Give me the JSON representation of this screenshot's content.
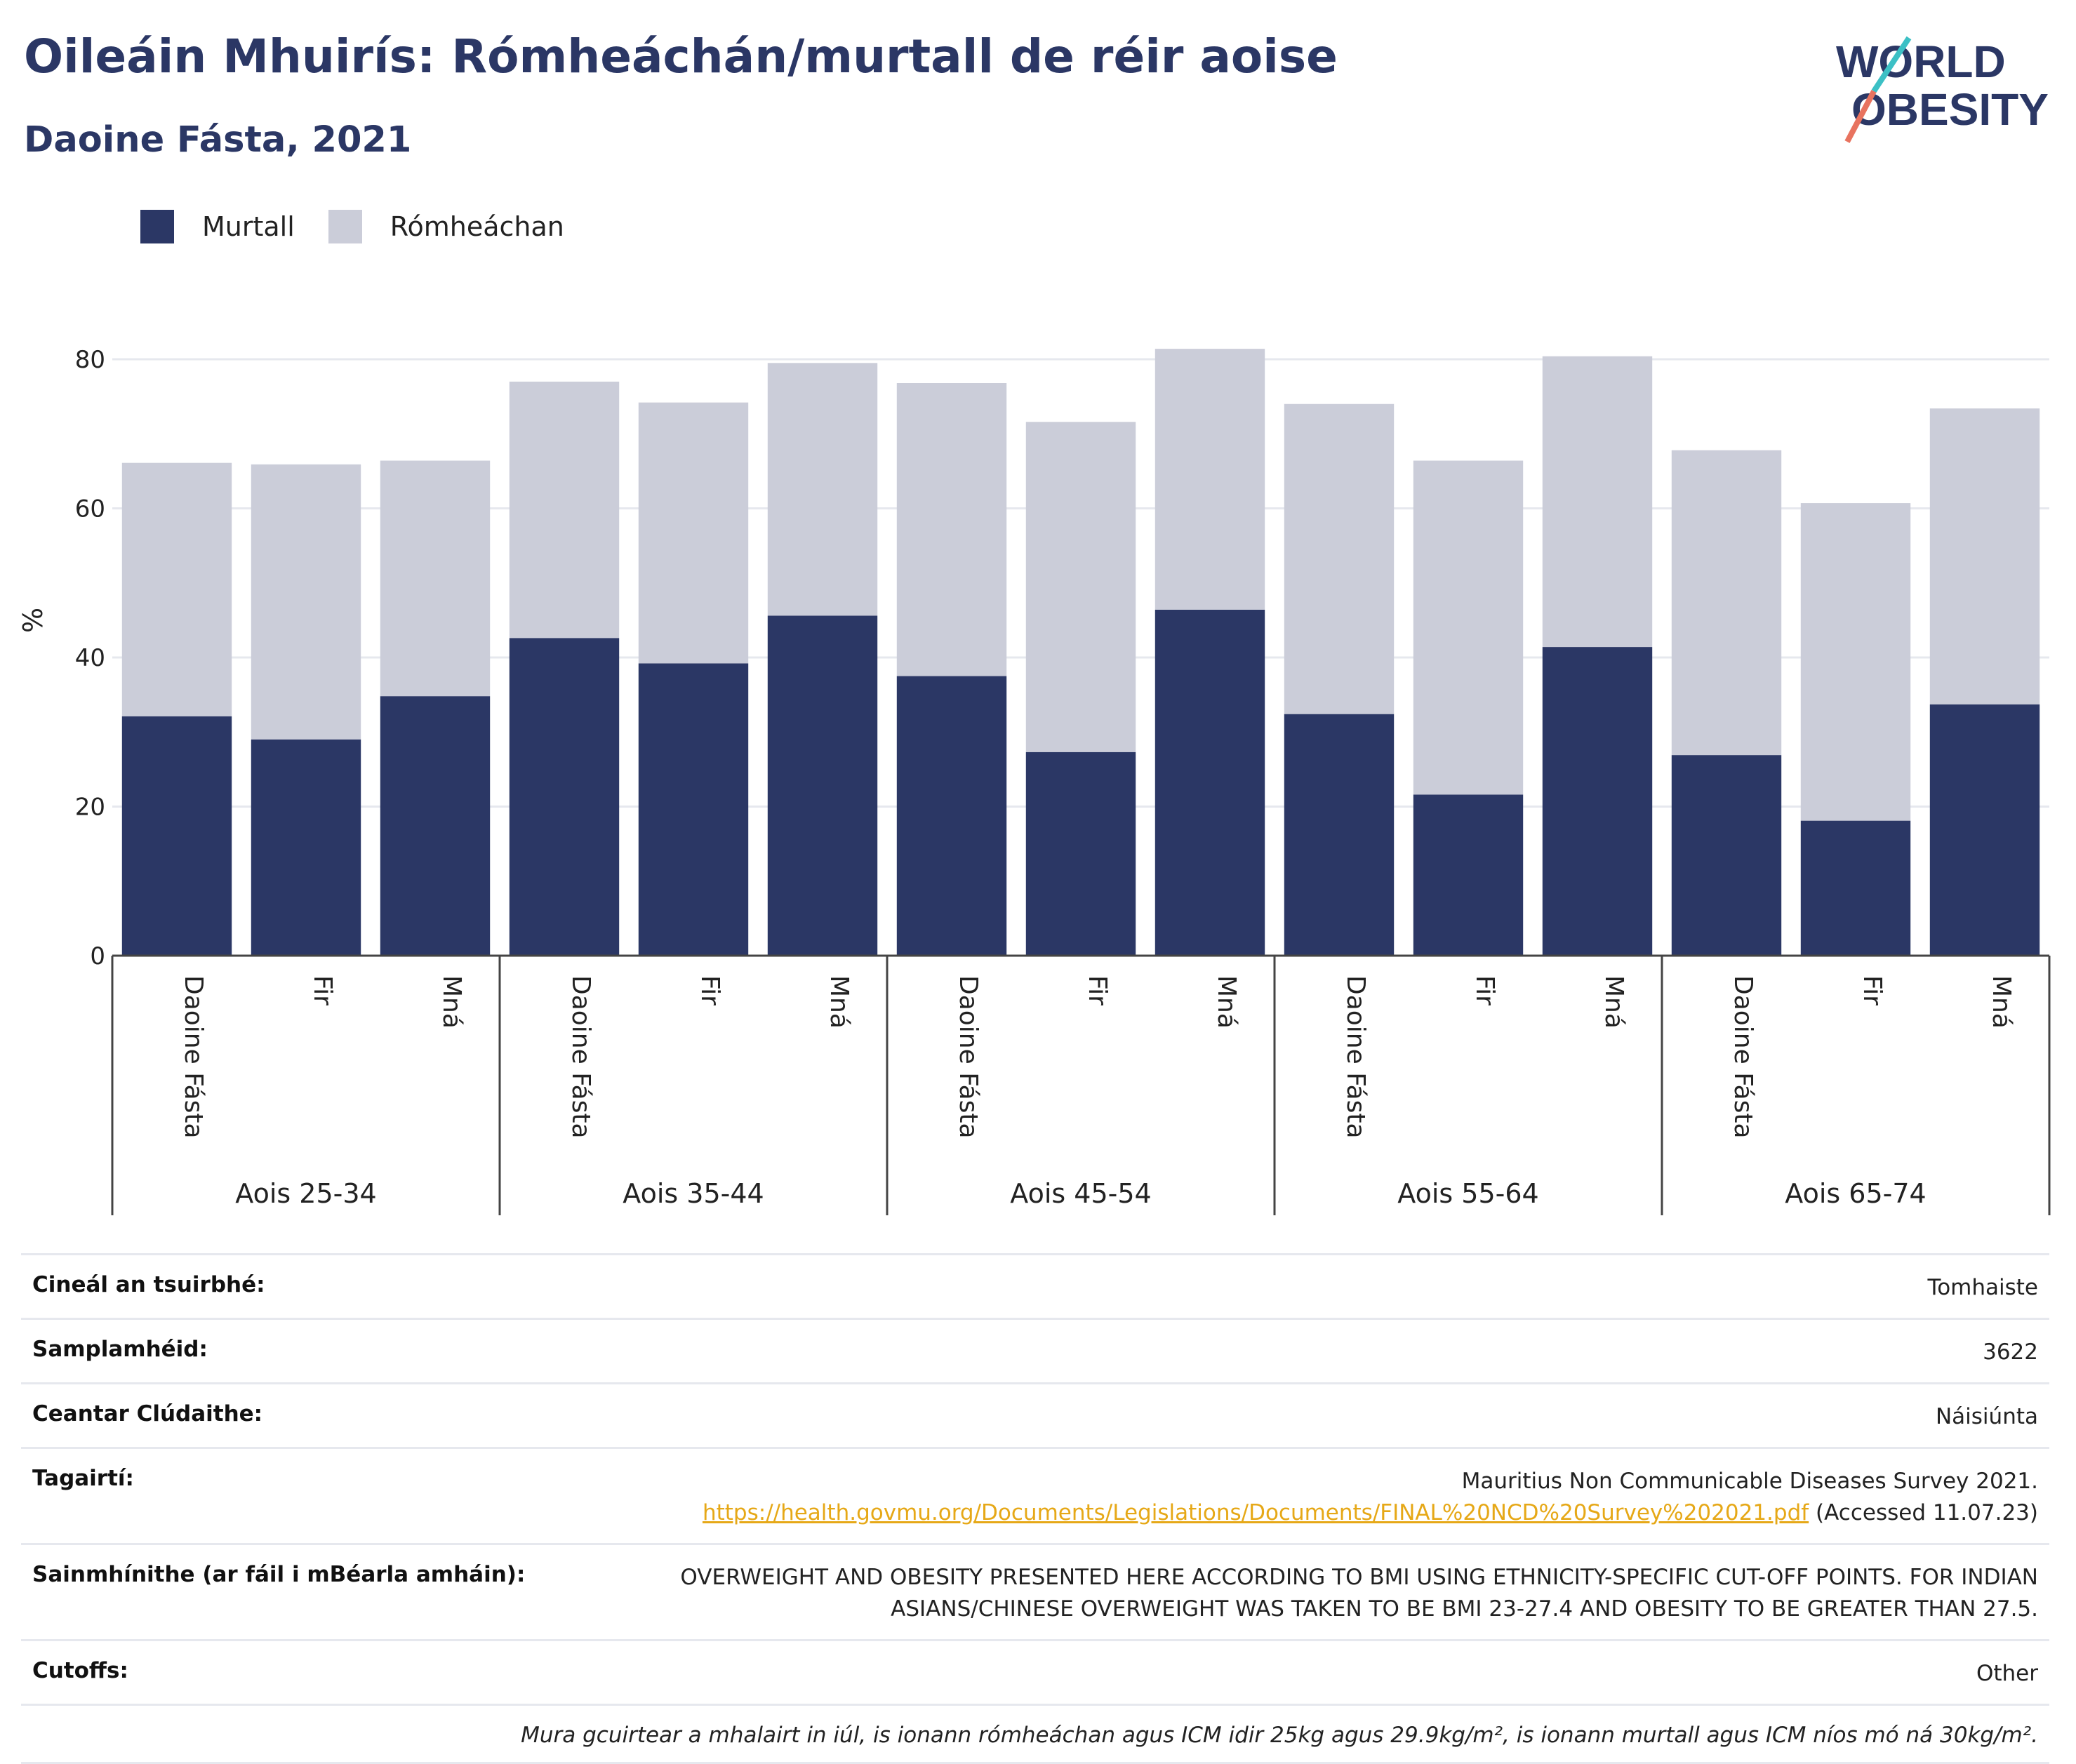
{
  "title": "Oileáin Mhuirís: Rómheáchán/murtall de réir aoise",
  "subtitle": "Daoine Fásta, 2021",
  "logo": {
    "line1": "WORLD",
    "line2": "OBESITY"
  },
  "legend": [
    {
      "label": "Murtall",
      "color": "#2b3765"
    },
    {
      "label": "Rómheáchan",
      "color": "#cbcdd9"
    }
  ],
  "chart_data": {
    "type": "bar",
    "stacked": true,
    "ylabel": "%",
    "ylim": [
      0,
      85
    ],
    "yticks": [
      0,
      20,
      40,
      60,
      80
    ],
    "grid": true,
    "legend_position": "top-left",
    "groups": [
      "Aois 25-34",
      "Aois 35-44",
      "Aois 45-54",
      "Aois 55-64",
      "Aois 65-74"
    ],
    "subcategories": [
      "Daoine Fásta",
      "Fir",
      "Mná"
    ],
    "series": [
      {
        "name": "Murtall",
        "color": "#2b3765",
        "values": [
          32.1,
          29.0,
          34.8,
          42.6,
          39.2,
          45.6,
          37.5,
          27.3,
          46.4,
          32.4,
          21.6,
          41.4,
          26.9,
          18.1,
          33.7
        ]
      },
      {
        "name": "Rómheáchan",
        "color": "#cbcdd9",
        "values": [
          34.0,
          36.9,
          31.6,
          34.4,
          35.0,
          33.9,
          39.3,
          44.3,
          35.0,
          41.6,
          44.8,
          39.0,
          40.9,
          42.6,
          39.7
        ]
      }
    ]
  },
  "info": [
    {
      "key": "Cineál an tsuirbhé:",
      "value": "Tomhaiste"
    },
    {
      "key": "Samplamhéid:",
      "value": "3622"
    },
    {
      "key": "Ceantar Clúdaithe:",
      "value": "Náisiúnta"
    }
  ],
  "references": {
    "key": "Tagairtí:",
    "line1": "Mauritius Non Communicable Diseases Survey 2021.",
    "link": "https://health.govmu.org/Documents/Legislations/Documents/FINAL%20NCD%20Survey%202021.pdf",
    "accessed": " (Accessed 11.07.23)"
  },
  "definitions": {
    "key": "Sainmhínithe (ar fáil i mBéarla amháin):",
    "line1": "OVERWEIGHT AND OBESITY PRESENTED HERE ACCORDING TO BMI USING ETHNICITY-SPECIFIC CUT-OFF POINTS. FOR INDIAN",
    "line2": "ASIANS/CHINESE OVERWEIGHT WAS TAKEN TO BE BMI 23-27.4 AND OBESITY TO BE GREATER THAN 27.5."
  },
  "cutoffs": {
    "key": "Cutoffs:",
    "value": "Other"
  },
  "footnote": "Mura gcuirtear a mhalairt in iúl, is ionann rómheáchan agus ICM idir 25kg agus 29.9kg/m², is ionann murtall agus ICM níos mó ná 30kg/m²."
}
